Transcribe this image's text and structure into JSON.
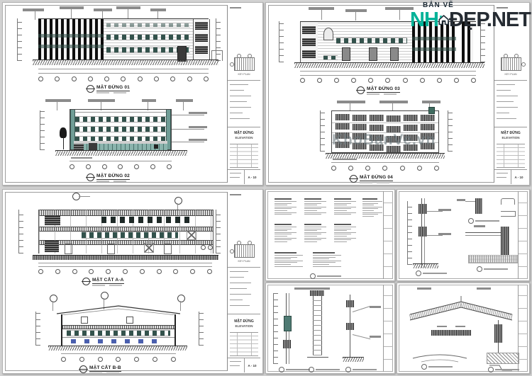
{
  "logo": {
    "tagline": "BẢN VẼ",
    "brand": "NH",
    "suffix": "ĐẸP.NET",
    "accent_color": "#00b298",
    "dark_color": "#1d2b36"
  },
  "watermark": {
    "text": "KhoBanVe.vn"
  },
  "sheets": {
    "a": {
      "drawings": [
        {
          "label": "MẶT ĐỨNG 01"
        },
        {
          "label": "MẶT ĐỨNG 02"
        }
      ],
      "titleblock": {
        "title": "MẶT ĐỨNG",
        "subtitle": "ELEVATION",
        "keyplan": "KEY PLAN",
        "sheet_no": "A - 10"
      }
    },
    "b": {
      "drawings": [
        {
          "label": "MẶT ĐỨNG 03"
        },
        {
          "label": "MẶT ĐỨNG 04"
        }
      ],
      "titleblock": {
        "title": "MẶT ĐỨNG",
        "subtitle": "ELEVATION",
        "keyplan": "KEY PLAN",
        "sheet_no": "A - 10"
      }
    },
    "c": {
      "drawings": [
        {
          "label": "MẶT CẮT A-A"
        },
        {
          "label": "MẶT CẮT B-B"
        }
      ],
      "titleblock": {
        "title": "MẶT ĐỨNG",
        "subtitle": "ELEVATION",
        "keyplan": "KEY PLAN",
        "sheet_no": "A - 10"
      }
    }
  }
}
